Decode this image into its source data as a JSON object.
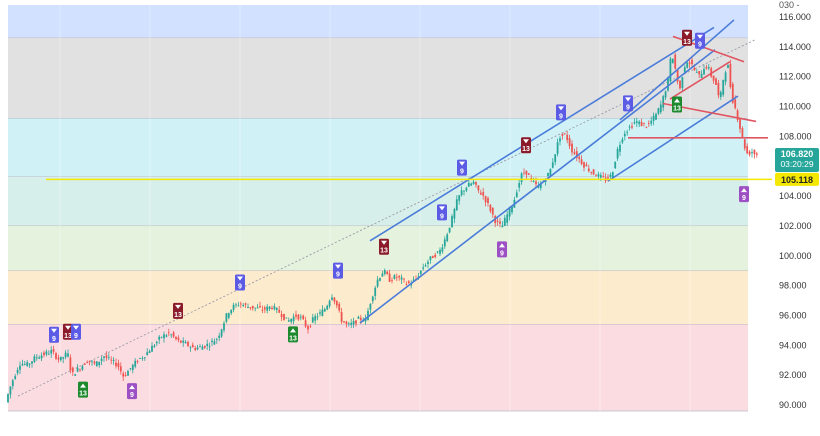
{
  "chart_data": {
    "type": "candlestick",
    "price_axis": {
      "ticks": [
        "116.000",
        "114.000",
        "112.000",
        "110.000",
        "108.000",
        "106.000",
        "104.000",
        "102.000",
        "100.000",
        "98.000",
        "96.000",
        "94.000",
        "92.000",
        "90.000"
      ],
      "partial_top_tick": "030 -",
      "range": [
        89.6,
        116.8
      ]
    },
    "last_price": {
      "value": "106.820",
      "countdown": "03:20:29",
      "color": "#26a69a"
    },
    "level_line": {
      "value": "105.118",
      "color": "#f5e800"
    },
    "zones": [
      {
        "from": 114.6,
        "to": 117.6,
        "color": "#c9dcff"
      },
      {
        "from": 109.2,
        "to": 114.6,
        "color": "#dcdcdc"
      },
      {
        "from": 105.3,
        "to": 109.2,
        "color": "#c8f0f4"
      },
      {
        "from": 102.0,
        "to": 105.3,
        "color": "#d0ece6"
      },
      {
        "from": 99.0,
        "to": 102.0,
        "color": "#dff0d8"
      },
      {
        "from": 95.4,
        "to": 99.0,
        "color": "#fde7c6"
      },
      {
        "from": 89.6,
        "to": 95.4,
        "color": "#fad7dc"
      }
    ],
    "price_path": [
      [
        0,
        90.2
      ],
      [
        6,
        91.5
      ],
      [
        14,
        92.8
      ],
      [
        22,
        92.7
      ],
      [
        30,
        93.2
      ],
      [
        38,
        93.4
      ],
      [
        46,
        93.6
      ],
      [
        54,
        93.0
      ],
      [
        62,
        93.5
      ],
      [
        66,
        92.0
      ],
      [
        74,
        92.5
      ],
      [
        82,
        93.0
      ],
      [
        90,
        92.7
      ],
      [
        98,
        93.3
      ],
      [
        104,
        93.0
      ],
      [
        112,
        92.7
      ],
      [
        118,
        91.9
      ],
      [
        124,
        92.4
      ],
      [
        132,
        93.0
      ],
      [
        140,
        93.4
      ],
      [
        148,
        94.0
      ],
      [
        156,
        94.6
      ],
      [
        164,
        94.8
      ],
      [
        172,
        94.3
      ],
      [
        180,
        94.1
      ],
      [
        188,
        93.8
      ],
      [
        196,
        93.9
      ],
      [
        204,
        94.1
      ],
      [
        212,
        94.5
      ],
      [
        218,
        95.5
      ],
      [
        222,
        96.2
      ],
      [
        228,
        96.6
      ],
      [
        234,
        96.8
      ],
      [
        242,
        96.6
      ],
      [
        250,
        96.5
      ],
      [
        258,
        96.4
      ],
      [
        266,
        96.6
      ],
      [
        274,
        96.2
      ],
      [
        282,
        95.6
      ],
      [
        290,
        96.0
      ],
      [
        296,
        95.8
      ],
      [
        302,
        95.1
      ],
      [
        308,
        95.8
      ],
      [
        314,
        96.1
      ],
      [
        320,
        96.5
      ],
      [
        326,
        97.4
      ],
      [
        330,
        96.9
      ],
      [
        336,
        95.7
      ],
      [
        342,
        95.3
      ],
      [
        348,
        95.5
      ],
      [
        354,
        95.8
      ],
      [
        360,
        95.7
      ],
      [
        366,
        97.2
      ],
      [
        372,
        98.4
      ],
      [
        378,
        99.0
      ],
      [
        384,
        98.4
      ],
      [
        390,
        98.6
      ],
      [
        396,
        98.4
      ],
      [
        402,
        98.1
      ],
      [
        410,
        98.4
      ],
      [
        418,
        99.3
      ],
      [
        426,
        99.9
      ],
      [
        434,
        100.3
      ],
      [
        440,
        101.2
      ],
      [
        446,
        102.4
      ],
      [
        452,
        103.8
      ],
      [
        456,
        104.3
      ],
      [
        462,
        104.7
      ],
      [
        468,
        104.9
      ],
      [
        472,
        104.4
      ],
      [
        478,
        104.0
      ],
      [
        484,
        103.2
      ],
      [
        490,
        102.3
      ],
      [
        496,
        101.9
      ],
      [
        502,
        102.8
      ],
      [
        508,
        103.6
      ],
      [
        512,
        104.6
      ],
      [
        516,
        105.4
      ],
      [
        520,
        105.7
      ],
      [
        526,
        105.0
      ],
      [
        532,
        104.6
      ],
      [
        538,
        105.0
      ],
      [
        544,
        105.6
      ],
      [
        550,
        107.0
      ],
      [
        554,
        108.0
      ],
      [
        560,
        108.1
      ],
      [
        566,
        107.1
      ],
      [
        572,
        106.6
      ],
      [
        578,
        106.1
      ],
      [
        586,
        105.6
      ],
      [
        594,
        105.3
      ],
      [
        600,
        105.1
      ],
      [
        606,
        105.4
      ],
      [
        612,
        107.1
      ],
      [
        618,
        108.2
      ],
      [
        624,
        108.6
      ],
      [
        630,
        109.0
      ],
      [
        636,
        108.8
      ],
      [
        642,
        108.7
      ],
      [
        650,
        109.4
      ],
      [
        656,
        110.2
      ],
      [
        662,
        111.6
      ],
      [
        666,
        113.7
      ],
      [
        670,
        112.4
      ],
      [
        674,
        111.0
      ],
      [
        678,
        112.6
      ],
      [
        682,
        113.1
      ],
      [
        686,
        112.8
      ],
      [
        690,
        112.3
      ],
      [
        694,
        112.0
      ],
      [
        698,
        112.6
      ],
      [
        702,
        112.7
      ],
      [
        706,
        112.0
      ],
      [
        710,
        111.6
      ],
      [
        714,
        110.3
      ],
      [
        718,
        112.0
      ],
      [
        722,
        112.9
      ],
      [
        726,
        110.7
      ],
      [
        730,
        109.8
      ],
      [
        734,
        108.7
      ],
      [
        738,
        107.5
      ],
      [
        742,
        106.8
      ],
      [
        746,
        107.0
      ],
      [
        750,
        106.8
      ]
    ],
    "trend_lines": [
      {
        "color": "#4a7cd9",
        "points": [
          [
            362,
            101.0
          ],
          [
            706,
            115.3
          ]
        ]
      },
      {
        "color": "#4a7cd9",
        "points": [
          [
            352,
            95.5
          ],
          [
            707,
            113.8
          ]
        ]
      },
      {
        "color": "#4a7cd9",
        "points": [
          [
            600,
            105.0
          ],
          [
            730,
            110.7
          ]
        ]
      },
      {
        "color": "#4a7cd9",
        "points": [
          [
            612,
            109.1
          ],
          [
            726,
            115.8
          ]
        ]
      },
      {
        "color": "#e05561",
        "points": [
          [
            665,
            114.7
          ],
          [
            736,
            113.0
          ]
        ]
      },
      {
        "color": "#e05561",
        "points": [
          [
            655,
            110.2
          ],
          [
            748,
            109.0
          ]
        ]
      },
      {
        "color": "#e05561",
        "points": [
          [
            620,
            107.9
          ],
          [
            760,
            107.9
          ]
        ]
      },
      {
        "color": "#e05561",
        "points": [
          [
            662,
            110.5
          ],
          [
            722,
            113.0
          ]
        ]
      }
    ],
    "dotted_line": {
      "points": [
        [
          10,
          90.6
        ],
        [
          748,
          114.5
        ]
      ]
    },
    "signals": [
      {
        "label": "9",
        "kind": "sell",
        "x": 46,
        "price": 93.5,
        "color": "#5b5be6"
      },
      {
        "label": "13",
        "kind": "sell",
        "x": 60,
        "price": 93.7,
        "color": "#8b1a2a"
      },
      {
        "label": "9",
        "kind": "sell",
        "x": 68,
        "price": 93.7,
        "color": "#5b5be6"
      },
      {
        "label": "13",
        "kind": "buy",
        "x": 75,
        "price": 91.7,
        "color": "#1e8a2e"
      },
      {
        "label": "9",
        "kind": "buy",
        "x": 124,
        "price": 91.6,
        "color": "#9c50c4"
      },
      {
        "label": "13",
        "kind": "sell",
        "x": 170,
        "price": 95.1,
        "color": "#8b1a2a"
      },
      {
        "label": "9",
        "kind": "sell",
        "x": 232,
        "price": 97.0,
        "color": "#5b5be6"
      },
      {
        "label": "13",
        "kind": "buy",
        "x": 285,
        "price": 95.4,
        "color": "#1e8a2e"
      },
      {
        "label": "9",
        "kind": "sell",
        "x": 330,
        "price": 97.8,
        "color": "#5b5be6"
      },
      {
        "label": "13",
        "kind": "sell",
        "x": 376,
        "price": 99.4,
        "color": "#8b1a2a"
      },
      {
        "label": "9",
        "kind": "sell",
        "x": 434,
        "price": 101.7,
        "color": "#5b5be6"
      },
      {
        "label": "9",
        "kind": "sell",
        "x": 454,
        "price": 104.7,
        "color": "#5b5be6"
      },
      {
        "label": "9",
        "kind": "buy",
        "x": 494,
        "price": 101.1,
        "color": "#9c50c4"
      },
      {
        "label": "13",
        "kind": "sell",
        "x": 518,
        "price": 106.2,
        "color": "#8b1a2a"
      },
      {
        "label": "9",
        "kind": "sell",
        "x": 553,
        "price": 108.4,
        "color": "#5b5be6"
      },
      {
        "label": "9",
        "kind": "sell",
        "x": 620,
        "price": 109.0,
        "color": "#5b5be6"
      },
      {
        "label": "13",
        "kind": "buy",
        "x": 669,
        "price": 110.8,
        "color": "#1e8a2e"
      },
      {
        "label": "13",
        "kind": "sell",
        "x": 679,
        "price": 113.4,
        "color": "#8b1a2a"
      },
      {
        "label": "9",
        "kind": "sell",
        "x": 692,
        "price": 113.2,
        "color": "#5b5be6"
      },
      {
        "label": "9",
        "kind": "buy",
        "x": 736,
        "price": 104.8,
        "color": "#9c50c4"
      }
    ]
  }
}
